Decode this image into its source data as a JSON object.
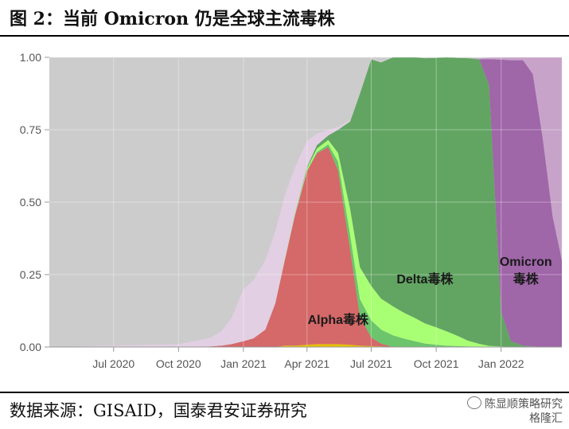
{
  "header": {
    "title": "图 2：当前 Omicron 仍是全球主流毒株"
  },
  "footer": {
    "source": "数据来源：GISAID，国泰君安证券研究",
    "watermark_line1": "陈显顺策略研究",
    "watermark_line2": "格隆汇"
  },
  "chart_data": {
    "type": "area",
    "stacking": "proportion",
    "x_tick_labels": [
      "Jul 2020",
      "Oct 2020",
      "Jan 2021",
      "Apr 2021",
      "Jul 2021",
      "Oct 2021",
      "Jan 2022"
    ],
    "y_tick_labels": [
      "0.00",
      "0.25",
      "0.50",
      "0.75",
      "1.00"
    ],
    "ylim": [
      0,
      1
    ],
    "x_range": [
      "2020-04-01",
      "2022-03-28"
    ],
    "grid": true,
    "annotations": [
      {
        "text": "Alpha毒株",
        "x": "2021-05-15",
        "y": 0.08
      },
      {
        "text": "Delta毒株",
        "x": "2021-09-15",
        "y": 0.22
      },
      {
        "text": "Omicron",
        "x": "2022-02-05",
        "y": 0.28
      },
      {
        "text": "毒株",
        "x": "2022-02-05",
        "y": 0.22
      }
    ],
    "x": [
      "2020-04-01",
      "2020-10-01",
      "2020-11-15",
      "2020-12-01",
      "2020-12-15",
      "2021-01-01",
      "2021-01-15",
      "2021-02-01",
      "2021-02-15",
      "2021-03-01",
      "2021-03-15",
      "2021-04-01",
      "2021-04-15",
      "2021-05-01",
      "2021-05-15",
      "2021-06-01",
      "2021-06-15",
      "2021-07-01",
      "2021-07-15",
      "2021-08-01",
      "2021-08-15",
      "2021-09-01",
      "2021-09-15",
      "2021-10-01",
      "2021-10-15",
      "2021-11-01",
      "2021-11-15",
      "2021-12-01",
      "2021-12-15",
      "2022-01-01",
      "2022-01-15",
      "2022-02-01",
      "2022-02-15",
      "2022-03-01",
      "2022-03-15",
      "2022-03-28"
    ],
    "series": [
      {
        "color": "#e6bf00",
        "values": [
          0,
          0,
          0,
          0,
          0,
          0,
          0,
          0,
          0,
          0.005,
          0.005,
          0.008,
          0.01,
          0.01,
          0.01,
          0.008,
          0.005,
          0.003,
          0.002,
          0,
          0,
          0,
          0,
          0,
          0,
          0,
          0,
          0,
          0,
          0,
          0,
          0,
          0,
          0,
          0,
          0
        ]
      },
      {
        "color": "#d56868",
        "values": [
          0,
          0,
          0.002,
          0.005,
          0.01,
          0.02,
          0.03,
          0.06,
          0.15,
          0.3,
          0.45,
          0.6,
          0.66,
          0.68,
          0.6,
          0.33,
          0.1,
          0.03,
          0.01,
          0,
          0,
          0,
          0,
          0,
          0,
          0,
          0,
          0,
          0,
          0,
          0,
          0,
          0,
          0,
          0,
          0
        ]
      },
      {
        "color": "#6cc46c",
        "values": [
          0,
          0,
          0,
          0,
          0,
          0,
          0,
          0,
          0,
          0,
          0,
          0.002,
          0.004,
          0.01,
          0.03,
          0.05,
          0.06,
          0.06,
          0.05,
          0.04,
          0.03,
          0.02,
          0.012,
          0.008,
          0.005,
          0.003,
          0.002,
          0.001,
          0,
          0,
          0,
          0,
          0,
          0,
          0,
          0
        ]
      },
      {
        "color": "#a9ff73",
        "values": [
          0,
          0,
          0,
          0,
          0,
          0,
          0,
          0,
          0,
          0.003,
          0.004,
          0.008,
          0.012,
          0.015,
          0.03,
          0.09,
          0.11,
          0.12,
          0.11,
          0.1,
          0.09,
          0.08,
          0.07,
          0.06,
          0.05,
          0.035,
          0.02,
          0.01,
          0.004,
          0.002,
          0,
          0,
          0,
          0,
          0,
          0
        ]
      },
      {
        "color": "#62a562",
        "values": [
          0,
          0,
          0,
          0,
          0,
          0,
          0,
          0,
          0,
          0,
          0.002,
          0.005,
          0.012,
          0.015,
          0.08,
          0.3,
          0.6,
          0.79,
          0.84,
          0.86,
          0.88,
          0.9,
          0.915,
          0.93,
          0.945,
          0.96,
          0.975,
          0.985,
          0.9,
          0.12,
          0.02,
          0.005,
          0.002,
          0,
          0,
          0
        ]
      },
      {
        "color": "#9f66a8",
        "values": [
          0,
          0,
          0,
          0,
          0,
          0,
          0,
          0,
          0,
          0,
          0,
          0,
          0,
          0,
          0,
          0,
          0,
          0,
          0,
          0,
          0,
          0,
          0,
          0,
          0,
          0,
          0,
          0,
          0.09,
          0.87,
          0.97,
          0.985,
          0.94,
          0.72,
          0.45,
          0.3
        ]
      },
      {
        "color": "#c7a3c9",
        "values": [
          0,
          0,
          0,
          0,
          0,
          0,
          0,
          0,
          0,
          0,
          0,
          0,
          0,
          0,
          0,
          0,
          0,
          0,
          0,
          0,
          0,
          0,
          0,
          0,
          0,
          0,
          0,
          0.003,
          0.005,
          0.008,
          0.01,
          0.01,
          0.058,
          0.28,
          0.55,
          0.7
        ]
      },
      {
        "color": "#e2cfe3",
        "values": [
          0,
          0.01,
          0.03,
          0.05,
          0.09,
          0.18,
          0.2,
          0.24,
          0.25,
          0.22,
          0.16,
          0.09,
          0.04,
          0.02,
          0.01,
          0.005,
          0.003,
          0.002,
          0.001,
          0,
          0,
          0,
          0,
          0,
          0,
          0,
          0,
          0,
          0,
          0,
          0,
          0,
          0,
          0,
          0,
          0
        ]
      },
      {
        "color": "#cccccc",
        "values": [
          1,
          0.99,
          0.968,
          0.945,
          0.9,
          0.8,
          0.77,
          0.7,
          0.6,
          0.472,
          0.379,
          0.289,
          0.264,
          0.25,
          0.24,
          0.217,
          0.122,
          0.005,
          0.017,
          0,
          0,
          0,
          0.003,
          0.002,
          0,
          0.002,
          0.003,
          0.004,
          0.001,
          0,
          0,
          0,
          0,
          0,
          0,
          0
        ]
      }
    ]
  }
}
